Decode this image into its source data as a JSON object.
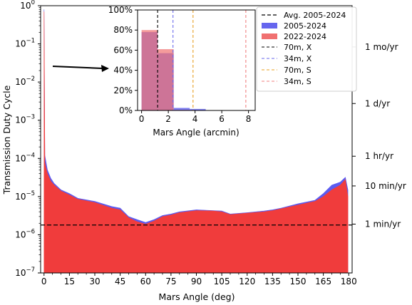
{
  "chart_data": [
    {
      "type": "area",
      "xlabel": "Mars Angle (deg)",
      "ylabel": "Transmission Duty Cycle",
      "xlim": [
        -2,
        182
      ],
      "ylim_log10": [
        -7,
        0
      ],
      "xscale": "linear",
      "yscale": "log",
      "x_ticks": [
        0,
        15,
        30,
        45,
        60,
        75,
        90,
        105,
        120,
        135,
        150,
        165,
        180
      ],
      "x_tick_labels": [
        "0",
        "15",
        "30",
        "45",
        "60",
        "75",
        "90",
        "105",
        "120",
        "135",
        "150",
        "165",
        "180"
      ],
      "y_ticks": [
        {
          "value": 1,
          "base": "10",
          "exp": "0"
        },
        {
          "value": 0.1,
          "base": "10",
          "exp": "−1"
        },
        {
          "value": 0.01,
          "base": "10",
          "exp": "−2"
        },
        {
          "value": 0.001,
          "base": "10",
          "exp": "−3"
        },
        {
          "value": 0.0001,
          "base": "10",
          "exp": "−4"
        },
        {
          "value": 1e-05,
          "base": "10",
          "exp": "−5"
        },
        {
          "value": 1e-06,
          "base": "10",
          "exp": "−6"
        },
        {
          "value": 1e-07,
          "base": "10",
          "exp": "−7"
        }
      ],
      "secondary_y_ticks": [
        {
          "value": 0.0833,
          "label": "1 mo/yr"
        },
        {
          "value": 0.00274,
          "label": "1 d/yr"
        },
        {
          "value": 0.000114,
          "label": "1 hr/yr"
        },
        {
          "value": 1.9e-05,
          "label": "10 min/yr"
        },
        {
          "value": 1.9e-06,
          "label": "1 min/yr"
        }
      ],
      "average_line": {
        "value": 1.8e-06,
        "label": "Avg. 2005-2024"
      },
      "series": [
        {
          "name": "2005-2024",
          "color": "#5b5bf0",
          "x": [
            0,
            0.5,
            1,
            2,
            4,
            6,
            10,
            15,
            20,
            30,
            40,
            45,
            50,
            55,
            60,
            65,
            70,
            75,
            80,
            90,
            100,
            105,
            110,
            120,
            130,
            135,
            140,
            150,
            160,
            165,
            170,
            175,
            178,
            179.5
          ],
          "y": [
            0.8,
            0.00012,
            9e-05,
            5e-05,
            3e-05,
            2.2e-05,
            1.5e-05,
            1.2e-05,
            9e-06,
            7.5e-06,
            5.5e-06,
            5e-06,
            3e-06,
            2.5e-06,
            2.1e-06,
            2.5e-06,
            3.2e-06,
            3.5e-06,
            4e-06,
            4.5e-06,
            4.3e-06,
            4.2e-06,
            3.5e-06,
            3.8e-06,
            4.2e-06,
            4.5e-06,
            5e-06,
            6.5e-06,
            8e-06,
            1.2e-05,
            2e-05,
            2.4e-05,
            3.2e-05,
            1.5e-05
          ]
        },
        {
          "name": "2022-2024",
          "color": "#f03c3c",
          "x": [
            0,
            0.5,
            1,
            2,
            4,
            6,
            10,
            15,
            20,
            30,
            40,
            45,
            50,
            55,
            60,
            65,
            70,
            75,
            80,
            90,
            100,
            105,
            110,
            120,
            130,
            135,
            140,
            150,
            160,
            165,
            170,
            175,
            178,
            179.5
          ],
          "y": [
            0.7,
            8e-05,
            6e-05,
            4e-05,
            2.5e-05,
            2e-05,
            1.4e-05,
            1.1e-05,
            8.5e-06,
            7e-06,
            5e-06,
            4.5e-06,
            2.8e-06,
            2.2e-06,
            1.9e-06,
            2.3e-06,
            3e-06,
            3.3e-06,
            3.8e-06,
            4.3e-06,
            4.2e-06,
            4e-06,
            3.4e-06,
            3.7e-06,
            4e-06,
            4.3e-06,
            4.8e-06,
            6e-06,
            7.5e-06,
            1e-05,
            1.5e-05,
            2e-05,
            2.8e-05,
            1e-05
          ]
        }
      ]
    },
    {
      "type": "bar",
      "xlabel": "Mars Angle (arcmin)",
      "xlim": [
        -0.3,
        8.5
      ],
      "ylim": [
        0,
        100
      ],
      "x_ticks": [
        0,
        2,
        4,
        6,
        8
      ],
      "x_tick_labels": [
        "0",
        "2",
        "4",
        "6",
        "8"
      ],
      "y_ticks": [
        0,
        20,
        40,
        60,
        80,
        100
      ],
      "y_tick_labels": [
        "0%",
        "20%",
        "40%",
        "60%",
        "80%",
        "100%"
      ],
      "bin_edges": [
        0,
        1.2,
        2.4,
        3.6,
        4.8,
        6.0,
        7.2,
        8.4
      ],
      "series": [
        {
          "name": "2005-2024",
          "color": "#6666ee",
          "values": [
            78,
            57,
            2.5,
            1.5,
            0,
            0,
            0
          ]
        },
        {
          "name": "2022-2024",
          "color": "#f07070",
          "values": [
            80,
            61,
            0.5,
            0,
            0,
            0,
            0
          ]
        }
      ],
      "vlines": [
        {
          "x": 1.2,
          "label": "70m, X",
          "color": "#000000"
        },
        {
          "x": 2.35,
          "label": "34m, X",
          "color": "#6a6aee"
        },
        {
          "x": 3.85,
          "label": "70m, S",
          "color": "#e8a020"
        },
        {
          "x": 7.8,
          "label": "34m, S",
          "color": "#f08080"
        }
      ]
    }
  ]
}
